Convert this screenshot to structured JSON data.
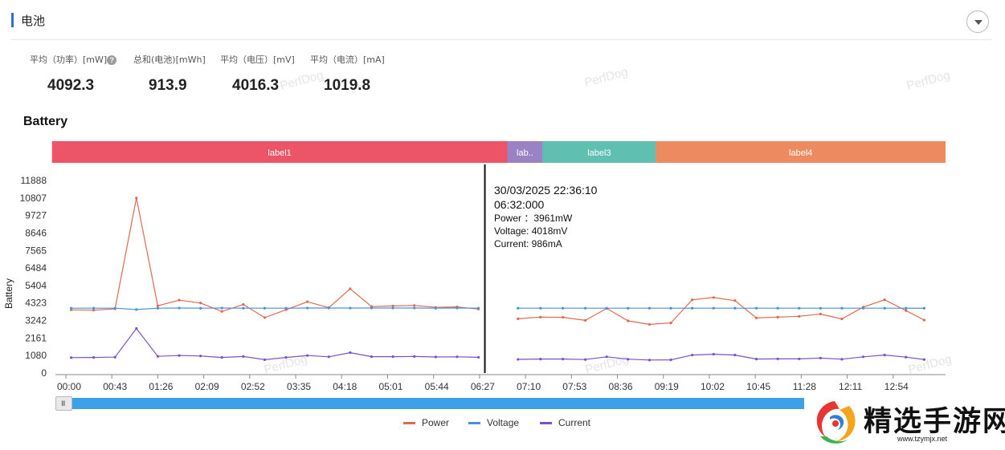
{
  "section": {
    "title": "电池"
  },
  "stats": [
    {
      "label": "平均（功率）[mW]",
      "value": "4092.3",
      "help": "?"
    },
    {
      "label": "总和(电池)[mWh]",
      "value": "913.9"
    },
    {
      "label": "平均（电压）[mV]",
      "value": "4016.3"
    },
    {
      "label": "平均（电流）[mA]",
      "value": "1019.8"
    }
  ],
  "watermark": "PerfDog",
  "chart_title": "Battery",
  "tooltip": {
    "datetime": "30/03/2025 22:36:10",
    "time": "06:32:000",
    "power": "Power ：3961mW",
    "voltage": "Voltage: 4018mV",
    "current": "Current: 986mA"
  },
  "scrollbar": {
    "grip": "III"
  },
  "colors": {
    "power": "#e06a4d",
    "voltage": "#4a90e2",
    "current": "#7a52c9",
    "label1": "#ee5468",
    "label2": "#9b82c4",
    "label3": "#5fbfb0",
    "label4": "#ee8a60"
  },
  "logo": {
    "text": "精选手游网",
    "url": "www.tzymjx.net"
  },
  "chart_data": {
    "type": "line",
    "ylabel": "Battery",
    "ylim": [
      0,
      11888
    ],
    "yticks": [
      0,
      1080,
      2161,
      3242,
      4323,
      5404,
      6484,
      7565,
      8646,
      9727,
      10807,
      11888
    ],
    "xlim": [
      0,
      823
    ],
    "xticks": [
      {
        "t": 0,
        "label": "00:00"
      },
      {
        "t": 43,
        "label": "00:43"
      },
      {
        "t": 86,
        "label": "01:26"
      },
      {
        "t": 129,
        "label": "02:09"
      },
      {
        "t": 172,
        "label": "02:52"
      },
      {
        "t": 215,
        "label": "03:35"
      },
      {
        "t": 258,
        "label": "04:18"
      },
      {
        "t": 301,
        "label": "05:01"
      },
      {
        "t": 344,
        "label": "05:44"
      },
      {
        "t": 387,
        "label": "06:27"
      },
      {
        "t": 430,
        "label": "07:10"
      },
      {
        "t": 473,
        "label": "07:53"
      },
      {
        "t": 516,
        "label": "08:36"
      },
      {
        "t": 559,
        "label": "09:19"
      },
      {
        "t": 602,
        "label": "10:02"
      },
      {
        "t": 645,
        "label": "10:45"
      },
      {
        "t": 688,
        "label": "11:28"
      },
      {
        "t": 731,
        "label": "12:11"
      },
      {
        "t": 774,
        "label": "12:54"
      }
    ],
    "labels": [
      {
        "name": "label1",
        "start": -13,
        "end": 413
      },
      {
        "name": "lab..",
        "start": 413,
        "end": 446
      },
      {
        "name": "label3",
        "start": 446,
        "end": 552
      },
      {
        "name": "label4",
        "start": 552,
        "end": 823
      }
    ],
    "cursor_t": 392,
    "segments": [
      {
        "x": [
          5,
          26,
          46,
          66,
          86,
          106,
          126,
          146,
          166,
          186,
          206,
          226,
          246,
          266,
          286,
          306,
          326,
          346,
          366,
          386
        ],
        "power": [
          3900,
          3880,
          3960,
          10807,
          4150,
          4500,
          4320,
          3800,
          4230,
          3420,
          3910,
          4400,
          4030,
          5200,
          4100,
          4140,
          4170,
          4050,
          4080,
          3950
        ],
        "voltage": [
          4000,
          4000,
          4000,
          3920,
          4000,
          4010,
          4000,
          4010,
          4000,
          4000,
          4000,
          4010,
          4010,
          4010,
          4010,
          4010,
          4010,
          4000,
          4010,
          4000
        ],
        "current": [
          950,
          960,
          980,
          2750,
          1030,
          1080,
          1050,
          960,
          1020,
          820,
          960,
          1080,
          1000,
          1260,
          1010,
          1010,
          1020,
          990,
          1000,
          970
        ]
      },
      {
        "x": [
          423,
          444,
          465,
          486,
          506,
          526,
          546,
          566,
          586,
          606,
          626,
          646,
          666,
          686,
          706,
          726,
          746,
          766,
          786
        ],
        "power": [
          3350,
          3450,
          3440,
          3250,
          3990,
          3220,
          3000,
          3090,
          4520,
          4660,
          4470,
          3400,
          3450,
          3500,
          3640,
          3340,
          4070,
          4520,
          3850
        ],
        "voltage": [
          4000,
          4000,
          4000,
          4000,
          4000,
          4000,
          4000,
          4000,
          4000,
          4000,
          4000,
          4000,
          4000,
          4000,
          4000,
          4000,
          4000,
          4000,
          4000
        ],
        "current": [
          840,
          860,
          860,
          830,
          1000,
          850,
          800,
          810,
          1110,
          1160,
          1110,
          860,
          870,
          870,
          920,
          850,
          1000,
          1110,
          980
        ]
      }
    ],
    "last_point": {
      "x": 803,
      "power": 3270,
      "voltage": 4000,
      "current": 830
    },
    "series": [
      {
        "name": "Power",
        "key": "power"
      },
      {
        "name": "Voltage",
        "key": "voltage"
      },
      {
        "name": "Current",
        "key": "current"
      }
    ]
  }
}
